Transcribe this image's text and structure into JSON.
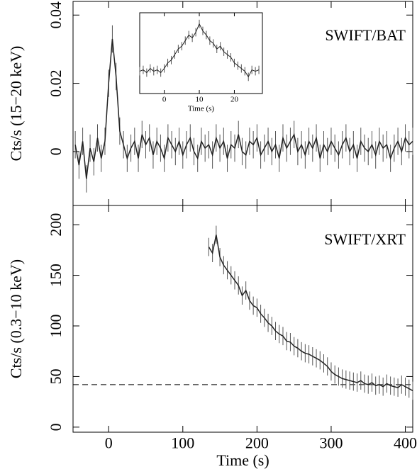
{
  "chart_data": [
    {
      "type": "line",
      "ylabel": "Cts/s (15−20 keV)",
      "annotation": "SWIFT/BAT",
      "xlim": [
        -48,
        410
      ],
      "ylim": [
        -0.0158,
        0.044
      ],
      "xticks": [
        0,
        100,
        200,
        300,
        400
      ],
      "yticks": [
        0,
        0.02,
        0.04
      ],
      "series": [
        {
          "color": "#222222",
          "error": 0.004,
          "x": [
            -45,
            -40,
            -35,
            -30,
            -25,
            -20,
            -15,
            -10,
            -5,
            0,
            5,
            10,
            15,
            20,
            25,
            30,
            35,
            40,
            45,
            50,
            55,
            60,
            65,
            70,
            75,
            80,
            85,
            90,
            95,
            100,
            105,
            110,
            115,
            120,
            125,
            130,
            135,
            140,
            145,
            150,
            155,
            160,
            165,
            170,
            175,
            180,
            185,
            190,
            195,
            200,
            205,
            210,
            215,
            220,
            225,
            230,
            235,
            240,
            245,
            250,
            255,
            260,
            265,
            270,
            275,
            280,
            285,
            290,
            295,
            300,
            305,
            310,
            315,
            320,
            325,
            330,
            335,
            340,
            345,
            350,
            355,
            360,
            365,
            370,
            375,
            380,
            385,
            390,
            395,
            400,
            405,
            410
          ],
          "values": [
            0.002,
            -0.004,
            0.003,
            -0.008,
            0.001,
            -0.003,
            0.004,
            -0.002,
            0.003,
            0.02,
            0.033,
            0.022,
            0.006,
            0.002,
            -0.002,
            0.001,
            0.003,
            -0.002,
            0.005,
            0.002,
            0.004,
            -0.001,
            0.003,
            0.001,
            -0.002,
            0.004,
            0.002,
            0.0,
            0.003,
            -0.001,
            0.002,
            0.004,
            0.0,
            -0.002,
            0.003,
            0.001,
            0.002,
            -0.001,
            0.004,
            0.001,
            0.003,
            -0.002,
            0.002,
            0.001,
            0.005,
            0.0,
            -0.001,
            0.003,
            0.002,
            0.004,
            -0.001,
            0.001,
            0.003,
            0.0,
            0.002,
            -0.002,
            0.004,
            0.001,
            0.003,
            0.005,
            0.0,
            0.002,
            -0.001,
            0.003,
            0.001,
            0.004,
            -0.002,
            0.002,
            0.0,
            0.003,
            0.001,
            -0.001,
            0.002,
            0.004,
            0.0,
            0.002,
            -0.002,
            0.003,
            0.001,
            0.0,
            0.002,
            -0.001,
            0.003,
            0.001,
            0.002,
            -0.002,
            0.001,
            0.003,
            0.0,
            0.004,
            0.002,
            0.003
          ]
        }
      ]
    },
    {
      "type": "line",
      "ylabel": "Cts/s (0.3−10 keV)",
      "xlabel": "Time (s)",
      "annotation": "SWIFT/XRT",
      "xlim": [
        -48,
        410
      ],
      "ylim": [
        -5,
        219
      ],
      "xticks": [
        0,
        100,
        200,
        300,
        400
      ],
      "yticks": [
        0,
        50,
        100,
        150,
        200
      ],
      "reference_line": 42,
      "series": [
        {
          "color": "#222222",
          "error": 9,
          "x": [
            135,
            140,
            145,
            150,
            155,
            160,
            165,
            170,
            175,
            180,
            185,
            190,
            195,
            200,
            205,
            210,
            215,
            220,
            225,
            230,
            235,
            240,
            245,
            250,
            255,
            260,
            265,
            270,
            275,
            280,
            285,
            290,
            295,
            300,
            305,
            310,
            315,
            320,
            325,
            330,
            335,
            340,
            345,
            350,
            355,
            360,
            365,
            370,
            375,
            380,
            385,
            390,
            395,
            400,
            405,
            410
          ],
          "values": [
            178,
            172,
            190,
            168,
            160,
            155,
            150,
            145,
            140,
            130,
            135,
            125,
            120,
            118,
            112,
            108,
            103,
            100,
            95,
            92,
            90,
            85,
            84,
            80,
            78,
            75,
            73,
            72,
            70,
            68,
            66,
            63,
            60,
            55,
            52,
            50,
            48,
            47,
            46,
            45,
            44,
            46,
            43,
            42,
            44,
            41,
            42,
            40,
            43,
            41,
            40,
            39,
            42,
            40,
            38,
            36
          ]
        }
      ]
    },
    {
      "type": "line",
      "xlabel": "Time (s)",
      "xlim": [
        -7,
        28
      ],
      "ylim": [
        -0.012,
        0.046
      ],
      "xticks": [
        0,
        10,
        20
      ],
      "series": [
        {
          "color": "#222222",
          "error": 0.003,
          "x": [
            -7,
            -6,
            -5,
            -4,
            -3,
            -2,
            -1,
            0,
            1,
            2,
            3,
            4,
            5,
            6,
            7,
            8,
            9,
            10,
            11,
            12,
            13,
            14,
            15,
            16,
            17,
            18,
            19,
            20,
            21,
            22,
            23,
            24,
            25,
            26,
            27
          ],
          "values": [
            0.004,
            0.005,
            0.003,
            0.006,
            0.004,
            0.005,
            0.003,
            0.006,
            0.01,
            0.012,
            0.016,
            0.02,
            0.022,
            0.026,
            0.03,
            0.028,
            0.032,
            0.038,
            0.033,
            0.03,
            0.026,
            0.024,
            0.02,
            0.022,
            0.018,
            0.016,
            0.014,
            0.01,
            0.008,
            0.006,
            0.004,
            0.0,
            0.005,
            0.004,
            0.005
          ]
        }
      ]
    }
  ]
}
